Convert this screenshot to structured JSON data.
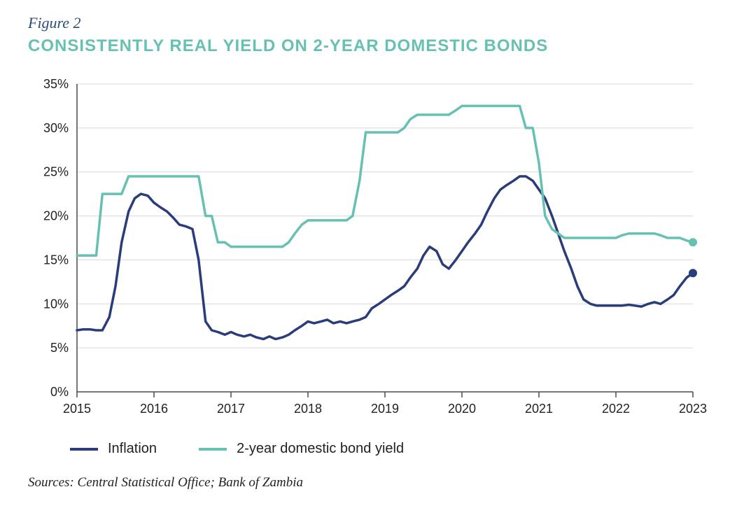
{
  "figure_label": "Figure 2",
  "figure_label_color": "#2a4d7a",
  "title": "CONSISTENTLY REAL YIELD ON 2-YEAR DOMESTIC BONDS",
  "title_color": "#67c1b3",
  "source": "Sources: Central Statistical Office; Bank of Zambia",
  "chart": {
    "type": "line",
    "background_color": "#ffffff",
    "grid_color": "#d9d9d9",
    "axis_line_color": "#4a4a4a",
    "axis_font_size": 18,
    "x": {
      "min": 2015,
      "max": 2023,
      "ticks": [
        2015,
        2016,
        2017,
        2018,
        2019,
        2020,
        2021,
        2022,
        2023
      ],
      "labels": [
        "2015",
        "2016",
        "2017",
        "2018",
        "2019",
        "2020",
        "2021",
        "2022",
        "2023"
      ]
    },
    "y": {
      "min": 0,
      "max": 35,
      "ticks": [
        0,
        5,
        10,
        15,
        20,
        25,
        30,
        35
      ],
      "labels": [
        "0%",
        "5%",
        "10%",
        "15%",
        "20%",
        "25%",
        "30%",
        "35%"
      ]
    },
    "series": [
      {
        "name": "Inflation",
        "color": "#2a3d7a",
        "line_width": 3.5,
        "end_marker_radius": 6,
        "points": [
          [
            2015.0,
            7.0
          ],
          [
            2015.08,
            7.1
          ],
          [
            2015.17,
            7.1
          ],
          [
            2015.25,
            7.0
          ],
          [
            2015.33,
            7.0
          ],
          [
            2015.42,
            8.5
          ],
          [
            2015.5,
            12.0
          ],
          [
            2015.58,
            17.0
          ],
          [
            2015.67,
            20.5
          ],
          [
            2015.75,
            22.0
          ],
          [
            2015.83,
            22.5
          ],
          [
            2015.92,
            22.3
          ],
          [
            2016.0,
            21.5
          ],
          [
            2016.08,
            21.0
          ],
          [
            2016.17,
            20.5
          ],
          [
            2016.25,
            19.8
          ],
          [
            2016.33,
            19.0
          ],
          [
            2016.42,
            18.8
          ],
          [
            2016.5,
            18.5
          ],
          [
            2016.58,
            15.0
          ],
          [
            2016.67,
            8.0
          ],
          [
            2016.75,
            7.0
          ],
          [
            2016.83,
            6.8
          ],
          [
            2016.92,
            6.5
          ],
          [
            2017.0,
            6.8
          ],
          [
            2017.08,
            6.5
          ],
          [
            2017.17,
            6.3
          ],
          [
            2017.25,
            6.5
          ],
          [
            2017.33,
            6.2
          ],
          [
            2017.42,
            6.0
          ],
          [
            2017.5,
            6.3
          ],
          [
            2017.58,
            6.0
          ],
          [
            2017.67,
            6.2
          ],
          [
            2017.75,
            6.5
          ],
          [
            2017.83,
            7.0
          ],
          [
            2017.92,
            7.5
          ],
          [
            2018.0,
            8.0
          ],
          [
            2018.08,
            7.8
          ],
          [
            2018.17,
            8.0
          ],
          [
            2018.25,
            8.2
          ],
          [
            2018.33,
            7.8
          ],
          [
            2018.42,
            8.0
          ],
          [
            2018.5,
            7.8
          ],
          [
            2018.58,
            8.0
          ],
          [
            2018.67,
            8.2
          ],
          [
            2018.75,
            8.5
          ],
          [
            2018.83,
            9.5
          ],
          [
            2018.92,
            10.0
          ],
          [
            2019.0,
            10.5
          ],
          [
            2019.08,
            11.0
          ],
          [
            2019.17,
            11.5
          ],
          [
            2019.25,
            12.0
          ],
          [
            2019.33,
            13.0
          ],
          [
            2019.42,
            14.0
          ],
          [
            2019.5,
            15.5
          ],
          [
            2019.58,
            16.5
          ],
          [
            2019.67,
            16.0
          ],
          [
            2019.75,
            14.5
          ],
          [
            2019.83,
            14.0
          ],
          [
            2019.92,
            15.0
          ],
          [
            2020.0,
            16.0
          ],
          [
            2020.08,
            17.0
          ],
          [
            2020.17,
            18.0
          ],
          [
            2020.25,
            19.0
          ],
          [
            2020.33,
            20.5
          ],
          [
            2020.42,
            22.0
          ],
          [
            2020.5,
            23.0
          ],
          [
            2020.58,
            23.5
          ],
          [
            2020.67,
            24.0
          ],
          [
            2020.75,
            24.5
          ],
          [
            2020.83,
            24.5
          ],
          [
            2020.92,
            24.0
          ],
          [
            2021.0,
            23.0
          ],
          [
            2021.08,
            22.0
          ],
          [
            2021.17,
            20.0
          ],
          [
            2021.25,
            18.0
          ],
          [
            2021.33,
            16.0
          ],
          [
            2021.42,
            14.0
          ],
          [
            2021.5,
            12.0
          ],
          [
            2021.58,
            10.5
          ],
          [
            2021.67,
            10.0
          ],
          [
            2021.75,
            9.8
          ],
          [
            2021.83,
            9.8
          ],
          [
            2021.92,
            9.8
          ],
          [
            2022.0,
            9.8
          ],
          [
            2022.08,
            9.8
          ],
          [
            2022.17,
            9.9
          ],
          [
            2022.25,
            9.8
          ],
          [
            2022.33,
            9.7
          ],
          [
            2022.42,
            10.0
          ],
          [
            2022.5,
            10.2
          ],
          [
            2022.58,
            10.0
          ],
          [
            2022.67,
            10.5
          ],
          [
            2022.75,
            11.0
          ],
          [
            2022.83,
            12.0
          ],
          [
            2022.92,
            13.0
          ],
          [
            2023.0,
            13.5
          ]
        ]
      },
      {
        "name": "2-year domestic bond yield",
        "color": "#67c1b3",
        "line_width": 3.5,
        "end_marker_radius": 6,
        "points": [
          [
            2015.0,
            15.5
          ],
          [
            2015.08,
            15.5
          ],
          [
            2015.17,
            15.5
          ],
          [
            2015.25,
            15.5
          ],
          [
            2015.33,
            22.5
          ],
          [
            2015.42,
            22.5
          ],
          [
            2015.5,
            22.5
          ],
          [
            2015.58,
            22.5
          ],
          [
            2015.67,
            24.5
          ],
          [
            2015.75,
            24.5
          ],
          [
            2015.83,
            24.5
          ],
          [
            2015.92,
            24.5
          ],
          [
            2016.0,
            24.5
          ],
          [
            2016.08,
            24.5
          ],
          [
            2016.17,
            24.5
          ],
          [
            2016.25,
            24.5
          ],
          [
            2016.33,
            24.5
          ],
          [
            2016.42,
            24.5
          ],
          [
            2016.5,
            24.5
          ],
          [
            2016.58,
            24.5
          ],
          [
            2016.67,
            20.0
          ],
          [
            2016.75,
            20.0
          ],
          [
            2016.83,
            17.0
          ],
          [
            2016.92,
            17.0
          ],
          [
            2017.0,
            16.5
          ],
          [
            2017.08,
            16.5
          ],
          [
            2017.17,
            16.5
          ],
          [
            2017.25,
            16.5
          ],
          [
            2017.33,
            16.5
          ],
          [
            2017.42,
            16.5
          ],
          [
            2017.5,
            16.5
          ],
          [
            2017.58,
            16.5
          ],
          [
            2017.67,
            16.5
          ],
          [
            2017.75,
            17.0
          ],
          [
            2017.83,
            18.0
          ],
          [
            2017.92,
            19.0
          ],
          [
            2018.0,
            19.5
          ],
          [
            2018.08,
            19.5
          ],
          [
            2018.17,
            19.5
          ],
          [
            2018.25,
            19.5
          ],
          [
            2018.33,
            19.5
          ],
          [
            2018.42,
            19.5
          ],
          [
            2018.5,
            19.5
          ],
          [
            2018.58,
            20.0
          ],
          [
            2018.67,
            24.0
          ],
          [
            2018.75,
            29.5
          ],
          [
            2018.83,
            29.5
          ],
          [
            2018.92,
            29.5
          ],
          [
            2019.0,
            29.5
          ],
          [
            2019.08,
            29.5
          ],
          [
            2019.17,
            29.5
          ],
          [
            2019.25,
            30.0
          ],
          [
            2019.33,
            31.0
          ],
          [
            2019.42,
            31.5
          ],
          [
            2019.5,
            31.5
          ],
          [
            2019.58,
            31.5
          ],
          [
            2019.67,
            31.5
          ],
          [
            2019.75,
            31.5
          ],
          [
            2019.83,
            31.5
          ],
          [
            2019.92,
            32.0
          ],
          [
            2020.0,
            32.5
          ],
          [
            2020.08,
            32.5
          ],
          [
            2020.17,
            32.5
          ],
          [
            2020.25,
            32.5
          ],
          [
            2020.33,
            32.5
          ],
          [
            2020.42,
            32.5
          ],
          [
            2020.5,
            32.5
          ],
          [
            2020.58,
            32.5
          ],
          [
            2020.67,
            32.5
          ],
          [
            2020.75,
            32.5
          ],
          [
            2020.83,
            30.0
          ],
          [
            2020.92,
            30.0
          ],
          [
            2021.0,
            26.0
          ],
          [
            2021.08,
            20.0
          ],
          [
            2021.17,
            18.5
          ],
          [
            2021.25,
            18.0
          ],
          [
            2021.33,
            17.5
          ],
          [
            2021.42,
            17.5
          ],
          [
            2021.5,
            17.5
          ],
          [
            2021.58,
            17.5
          ],
          [
            2021.67,
            17.5
          ],
          [
            2021.75,
            17.5
          ],
          [
            2021.83,
            17.5
          ],
          [
            2021.92,
            17.5
          ],
          [
            2022.0,
            17.5
          ],
          [
            2022.08,
            17.8
          ],
          [
            2022.17,
            18.0
          ],
          [
            2022.25,
            18.0
          ],
          [
            2022.33,
            18.0
          ],
          [
            2022.42,
            18.0
          ],
          [
            2022.5,
            18.0
          ],
          [
            2022.58,
            17.8
          ],
          [
            2022.67,
            17.5
          ],
          [
            2022.75,
            17.5
          ],
          [
            2022.83,
            17.5
          ],
          [
            2022.92,
            17.2
          ],
          [
            2023.0,
            17.0
          ]
        ]
      }
    ],
    "legend": {
      "items": [
        {
          "label": "Inflation",
          "color": "#2a3d7a"
        },
        {
          "label": "2-year domestic bond yield",
          "color": "#67c1b3"
        }
      ]
    }
  }
}
